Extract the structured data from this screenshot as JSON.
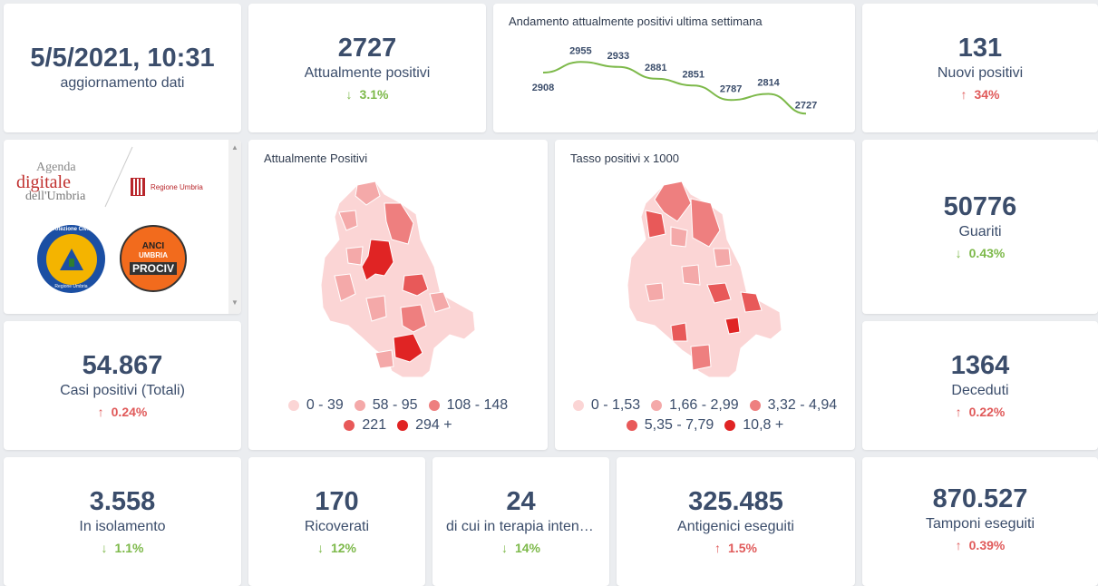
{
  "update": {
    "datetime": "5/5/2021, 10:31",
    "label": "aggiornamento dati"
  },
  "kpis": {
    "attualmente_positivi": {
      "value": "2727",
      "label": "Attualmente positivi",
      "change": "3.1%",
      "dir": "down"
    },
    "nuovi_positivi": {
      "value": "131",
      "label": "Nuovi positivi",
      "change": "34%",
      "dir": "up"
    },
    "guariti": {
      "value": "50776",
      "label": "Guariti",
      "change": "0.43%",
      "dir": "down"
    },
    "casi_totali": {
      "value": "54.867",
      "label": "Casi positivi (Totali)",
      "change": "0.24%",
      "dir": "up"
    },
    "deceduti": {
      "value": "1364",
      "label": "Deceduti",
      "change": "0.22%",
      "dir": "up"
    },
    "isolamento": {
      "value": "3.558",
      "label": "In isolamento",
      "change": "1.1%",
      "dir": "down"
    },
    "ricoverati": {
      "value": "170",
      "label": "Ricoverati",
      "change": "12%",
      "dir": "down"
    },
    "terapia": {
      "value": "24",
      "label": "di cui in terapia intensiva",
      "change": "14%",
      "dir": "down"
    },
    "antigenici": {
      "value": "325.485",
      "label": "Antigenici eseguiti",
      "change": "1.5%",
      "dir": "up"
    },
    "tamponi": {
      "value": "870.527",
      "label": "Tamponi eseguiti",
      "change": "0.39%",
      "dir": "up"
    }
  },
  "arrows": {
    "up": "↑",
    "down": "↓"
  },
  "logos": {
    "agenda_line1": "Agenda",
    "agenda_line2": "digitale",
    "agenda_line3": "dell'Umbria",
    "regione": "Regione Umbria",
    "protezione": "Protezione Civile",
    "protezione_sub": "Regione Umbria",
    "anci1": "ANCI",
    "anci2": "UMBRIA",
    "anci3": "PROCIV"
  },
  "colors": {
    "up": "#e05a5a",
    "down": "#7db94a",
    "line": "#7db94a",
    "text": "#3b4d6b"
  },
  "chart_data": {
    "type": "line",
    "title": "Andamento attualmente positivi ultima settimana",
    "x": [
      1,
      2,
      3,
      4,
      5,
      6,
      7,
      8
    ],
    "values": [
      2908,
      2955,
      2933,
      2881,
      2851,
      2787,
      2814,
      2727
    ],
    "labels": [
      "2908",
      "2955",
      "2933",
      "2881",
      "2851",
      "2787",
      "2814",
      "2727"
    ],
    "ylim": [
      2700,
      2980
    ],
    "grid": false
  },
  "maps": {
    "positivi": {
      "title": "Attualmente Positivi",
      "legend": [
        "0 - 39",
        "58 - 95",
        "108 - 148",
        "221",
        "294 +"
      ],
      "colors": [
        "#fbd5d5",
        "#f4a9a9",
        "#ee7f7f",
        "#e85959",
        "#e02424"
      ]
    },
    "tasso": {
      "title": "Tasso positivi x 1000",
      "legend": [
        "0 - 1,53",
        "1,66 - 2,99",
        "3,32 - 4,94",
        "5,35 - 7,79",
        "10,8 +"
      ],
      "colors": [
        "#fbd5d5",
        "#f4a9a9",
        "#ee7f7f",
        "#e85959",
        "#e02424"
      ]
    }
  }
}
